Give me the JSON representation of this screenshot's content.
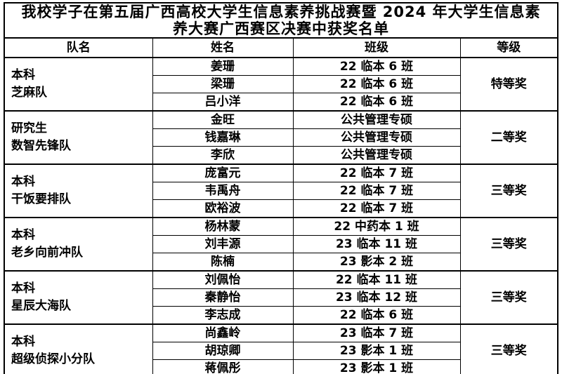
{
  "title": {
    "line1": "我校学子在第五届广西高校大学生信息素养挑战赛暨 2024 年大学生信息素",
    "line2": "养大赛广西赛区决赛中获奖名单"
  },
  "table": {
    "headers": [
      "队名",
      "姓名",
      "班级",
      "等级"
    ],
    "groups": [
      {
        "team_line1": "本科",
        "team_line2": "芝麻队",
        "award": "特等奖",
        "members": [
          {
            "name": "姜珊",
            "class": "22 临本 6 班"
          },
          {
            "name": "梁珊",
            "class": "22 临本 6 班"
          },
          {
            "name": "吕小洋",
            "class": "22 临本 6 班"
          }
        ]
      },
      {
        "team_line1": "研究生",
        "team_line2": "数智先锋队",
        "award": "二等奖",
        "members": [
          {
            "name": "金旺",
            "class": "公共管理专硕"
          },
          {
            "name": "钱嘉琳",
            "class": "公共管理专硕"
          },
          {
            "name": "李欣",
            "class": "公共管理专硕"
          }
        ]
      },
      {
        "team_line1": "本科",
        "team_line2": "干饭要排队",
        "award": "三等奖",
        "members": [
          {
            "name": "庞富元",
            "class": "22 临本 7 班"
          },
          {
            "name": "韦禹舟",
            "class": "22 临本 7 班"
          },
          {
            "name": "欧裕波",
            "class": "22 临本 7 班"
          }
        ]
      },
      {
        "team_line1": "本科",
        "team_line2": "老乡向前冲队",
        "award": "三等奖",
        "members": [
          {
            "name": "杨林蒙",
            "class": "22 中药本 1 班"
          },
          {
            "name": "刘丰源",
            "class": "23 临本 11 班"
          },
          {
            "name": "陈楠",
            "class": "23 影本 2 班"
          }
        ]
      },
      {
        "team_line1": "本科",
        "team_line2": "星辰大海队",
        "award": "三等奖",
        "members": [
          {
            "name": "刘佩怡",
            "class": "22 临本 11 班"
          },
          {
            "name": "秦静怡",
            "class": "23 临本 12 班"
          },
          {
            "name": "李志成",
            "class": "22 临本 6 班"
          }
        ]
      },
      {
        "team_line1": "本科",
        "team_line2": "超级侦探小分队",
        "award": "三等奖",
        "members": [
          {
            "name": "尚鑫岭",
            "class": "23 临本 7 班"
          },
          {
            "name": "胡琼卿",
            "class": "23 影本 1 班"
          },
          {
            "name": "蒋佩彤",
            "class": "23 影本 1 班"
          }
        ]
      }
    ]
  }
}
